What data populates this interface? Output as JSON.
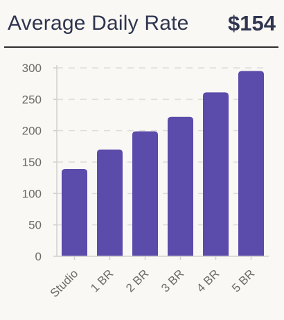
{
  "header": {
    "title": "Average Daily Rate",
    "kpi": "$154"
  },
  "chart_data": {
    "type": "bar",
    "categories": [
      "Studio",
      "1 BR",
      "2 BR",
      "3 BR",
      "4 BR",
      "5 BR"
    ],
    "values": [
      139,
      170,
      199,
      222,
      261,
      295
    ],
    "ylim": [
      0,
      300
    ],
    "yticks": [
      0,
      50,
      100,
      150,
      200,
      250,
      300
    ],
    "grid": true,
    "title": "",
    "xlabel": "",
    "ylabel": "",
    "bar_color": "#5b4bab",
    "grid_color": "#dcdcdc"
  }
}
